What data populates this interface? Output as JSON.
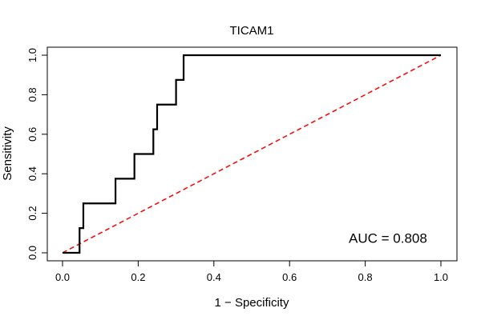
{
  "chart_data": {
    "type": "line",
    "title": "TICAM1",
    "xlabel": "1 − Specificity",
    "ylabel": "Sensitivity",
    "xlim": [
      0,
      1
    ],
    "ylim": [
      0,
      1
    ],
    "x_ticks": [
      0.0,
      0.2,
      0.4,
      0.6,
      0.8,
      1.0
    ],
    "x_tick_labels": [
      "0.0",
      "0.2",
      "0.4",
      "0.6",
      "0.8",
      "1.0"
    ],
    "y_ticks": [
      0.0,
      0.2,
      0.4,
      0.6,
      0.8,
      1.0
    ],
    "y_tick_labels": [
      "0.0",
      "0.2",
      "0.4",
      "0.6",
      "0.8",
      "1.0"
    ],
    "grid": false,
    "series": [
      {
        "name": "ROC curve",
        "color": "#000000",
        "style": "solid",
        "x": [
          0.0,
          0.045,
          0.045,
          0.055,
          0.055,
          0.14,
          0.14,
          0.19,
          0.19,
          0.24,
          0.24,
          0.25,
          0.25,
          0.3,
          0.3,
          0.32,
          0.32,
          1.0
        ],
        "y": [
          0.0,
          0.0,
          0.125,
          0.125,
          0.25,
          0.25,
          0.375,
          0.375,
          0.5,
          0.5,
          0.625,
          0.625,
          0.75,
          0.75,
          0.875,
          0.875,
          1.0,
          1.0
        ]
      },
      {
        "name": "Reference line",
        "color": "#ff0000",
        "style": "dashed",
        "x": [
          0.0,
          1.0
        ],
        "y": [
          0.0,
          1.0
        ]
      }
    ],
    "annotations": [
      {
        "text": "AUC = 0.808",
        "x": 0.86,
        "y": 0.05
      }
    ]
  }
}
